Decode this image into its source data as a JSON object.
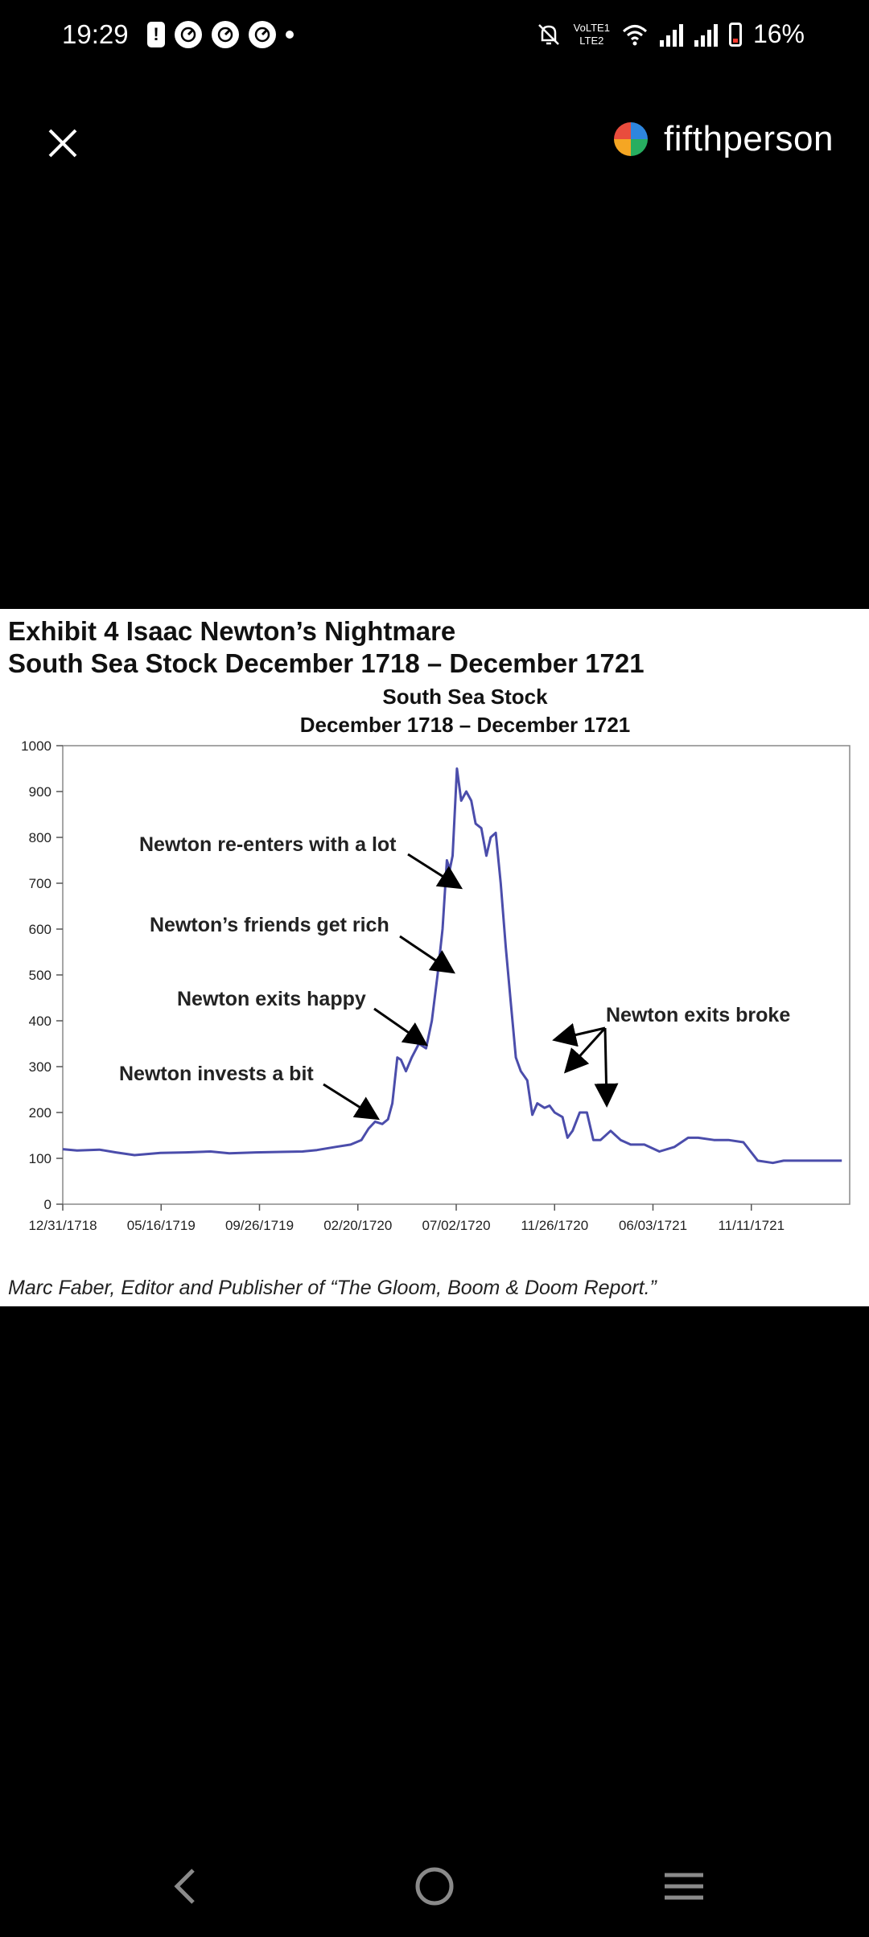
{
  "status_bar": {
    "time": "19:29",
    "alert_icon": "!",
    "lte_top": "VoLTE1",
    "lte_bottom": "LTE2",
    "battery": "16%"
  },
  "header": {
    "close_icon": "close-icon",
    "brand_name": "fifthperson",
    "brand_colors": [
      "#e94c3d",
      "#f5a623",
      "#2e86de",
      "#27ae60"
    ]
  },
  "exhibit": {
    "title_line1": "Exhibit 4  Isaac Newton’s Nightmare",
    "title_line2": "South Sea Stock December 1718 – December 1721",
    "caption": "Marc Faber, Editor and Publisher of “The Gloom, Boom & Doom Report.”"
  },
  "chart_data": {
    "type": "line",
    "title": "South Sea Stock",
    "subtitle": "December 1718 – December 1721",
    "xlabel": "",
    "ylabel": "",
    "ylim": [
      0,
      1000
    ],
    "yticks": [
      "0",
      "100",
      "200",
      "300",
      "400",
      "500",
      "600",
      "700",
      "800",
      "900",
      "1000"
    ],
    "xtick_labels": [
      "12/31/1718",
      "05/16/1719",
      "09/26/1719",
      "02/20/1720",
      "07/02/1720",
      "11/26/1720",
      "06/03/1721",
      "11/11/1721"
    ],
    "line_color": "#4b4dab",
    "grid": false,
    "series": [
      {
        "x": [
          "1718-12-31",
          "1719-01-20",
          "1719-02-20",
          "1719-03-15",
          "1719-04-10",
          "1719-05-16",
          "1719-06-20",
          "1719-07-25",
          "1719-08-20",
          "1719-09-26",
          "1719-10-30",
          "1719-11-30",
          "1719-12-20",
          "1720-01-15",
          "1720-02-05",
          "1720-02-20",
          "1720-03-01",
          "1720-03-10",
          "1720-03-20",
          "1720-03-28",
          "1720-04-03",
          "1720-04-10",
          "1720-04-15",
          "1720-04-22",
          "1720-04-30",
          "1720-05-10",
          "1720-05-20",
          "1720-05-28",
          "1720-06-05",
          "1720-06-12",
          "1720-06-18",
          "1720-06-22",
          "1720-06-26",
          "1720-07-02",
          "1720-07-08",
          "1720-07-15",
          "1720-07-22",
          "1720-07-28",
          "1720-08-05",
          "1720-08-12",
          "1720-08-18",
          "1720-08-25",
          "1720-09-01",
          "1720-09-08",
          "1720-09-15",
          "1720-09-22",
          "1720-09-29",
          "1720-10-08",
          "1720-10-15",
          "1720-10-22",
          "1720-11-01",
          "1720-11-08",
          "1720-11-15",
          "1720-11-26",
          "1720-12-03",
          "1720-12-10",
          "1720-12-20",
          "1720-12-30",
          "1721-01-08",
          "1721-01-18",
          "1721-02-01",
          "1721-02-15",
          "1721-03-01",
          "1721-03-20",
          "1721-04-10",
          "1721-05-01",
          "1721-05-20",
          "1721-06-03",
          "1721-06-25",
          "1721-07-15",
          "1721-08-05",
          "1721-08-25",
          "1721-09-15",
          "1721-09-30",
          "1721-10-10",
          "1721-10-25",
          "1721-11-11",
          "1721-11-30",
          "1721-12-20"
        ],
        "y": [
          120,
          117,
          119,
          113,
          107,
          112,
          113,
          115,
          111,
          113,
          114,
          115,
          118,
          125,
          130,
          140,
          165,
          180,
          175,
          185,
          220,
          320,
          315,
          290,
          320,
          350,
          340,
          400,
          500,
          600,
          750,
          730,
          760,
          950,
          880,
          900,
          880,
          830,
          820,
          760,
          800,
          810,
          700,
          560,
          440,
          320,
          290,
          270,
          195,
          220,
          210,
          215,
          200,
          190,
          145,
          160,
          200,
          200,
          140,
          140,
          160,
          140,
          130,
          130,
          115,
          125,
          145,
          145,
          140,
          140,
          135,
          95,
          90,
          95,
          95,
          95,
          95,
          95,
          95
        ]
      }
    ],
    "annotations": [
      "Newton re-enters with a lot",
      "Newton’s friends get rich",
      "Newton exits happy",
      "Newton invests a bit",
      "Newton exits broke"
    ]
  },
  "nav": {
    "back": "back-icon",
    "home": "home-icon",
    "recents": "recents-icon"
  }
}
